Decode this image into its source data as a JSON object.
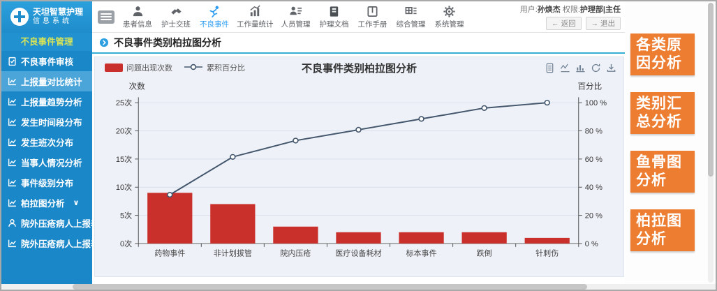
{
  "topbar": {
    "logo_line1": "天坦智慧护理",
    "logo_line2": "信息系统",
    "nav": [
      {
        "label": "患者信息"
      },
      {
        "label": "护士交班"
      },
      {
        "label": "不良事件"
      },
      {
        "label": "工作量统计"
      },
      {
        "label": "人员管理"
      },
      {
        "label": "护理文档"
      },
      {
        "label": "工作手册"
      },
      {
        "label": "综合管理"
      },
      {
        "label": "系统管理"
      }
    ],
    "active_nav": "不良事件",
    "user_prefix": "用户:",
    "user_name": "孙焕杰",
    "role_prefix": "权限:",
    "role_value": "护理部|主任",
    "back_button": "返回",
    "logout_button": "退出"
  },
  "sidebar": {
    "header": "不良事件管理",
    "items": [
      {
        "label": "不良事件审核"
      },
      {
        "label": "上报量对比统计",
        "active": true
      },
      {
        "label": "上报量趋势分析"
      },
      {
        "label": "发生时间段分布"
      },
      {
        "label": "发生班次分布"
      },
      {
        "label": "当事人情况分析"
      },
      {
        "label": "事件级别分布"
      },
      {
        "label": "柏拉图分析",
        "expandable": true
      },
      {
        "label": "院外压疮病人上报表"
      },
      {
        "label": "院外压疮病人上报表"
      }
    ]
  },
  "main": {
    "page_title": "不良事件类别柏拉图分析"
  },
  "chart_data": {
    "type": "bar",
    "subtype": "pareto",
    "title": "不良事件类别柏拉图分析",
    "categories": [
      "药物事件",
      "非计划拔管",
      "院内压疮",
      "医疗设备耗材",
      "标本事件",
      "跌倒",
      "针刺伤"
    ],
    "series": [
      {
        "name": "问题出现次数",
        "type": "bar",
        "axis": "left",
        "values": [
          9,
          7,
          3,
          2,
          2,
          2,
          1
        ],
        "color": "#c9302c"
      },
      {
        "name": "累积百分比",
        "type": "line",
        "axis": "right",
        "values": [
          34.6,
          61.5,
          73.1,
          80.8,
          88.5,
          96.2,
          100
        ],
        "color": "#44566c"
      }
    ],
    "left_axis": {
      "name": "次数",
      "min": 0,
      "max": 25,
      "step": 5,
      "tick_suffix": "次"
    },
    "right_axis": {
      "name": "百分比",
      "min": 0,
      "max": 100,
      "step": 20,
      "tick_suffix": " %"
    },
    "grid": true,
    "legend_position": "top-left",
    "toolbox": [
      "data-view",
      "line-toggle",
      "bar-toggle",
      "restore",
      "download"
    ]
  },
  "right_panel": {
    "items": [
      "各类原因分析",
      "类别汇总分析",
      "鱼骨图分析",
      "柏拉图分析"
    ]
  },
  "icons": {
    "chevron_down": "∨",
    "back_arrow": "←",
    "logout_arrow": "→"
  },
  "colors": {
    "sidebar_blue": "#1a87c8",
    "sidebar_active": "#4ba5d9",
    "sidebar_header_text": "#d8e457",
    "nav_active": "#2b9cf2",
    "bar_red": "#c9302c",
    "line_slate": "#44566c",
    "accent_orange": "#ec7d31",
    "header_underline": "#35aed6"
  }
}
